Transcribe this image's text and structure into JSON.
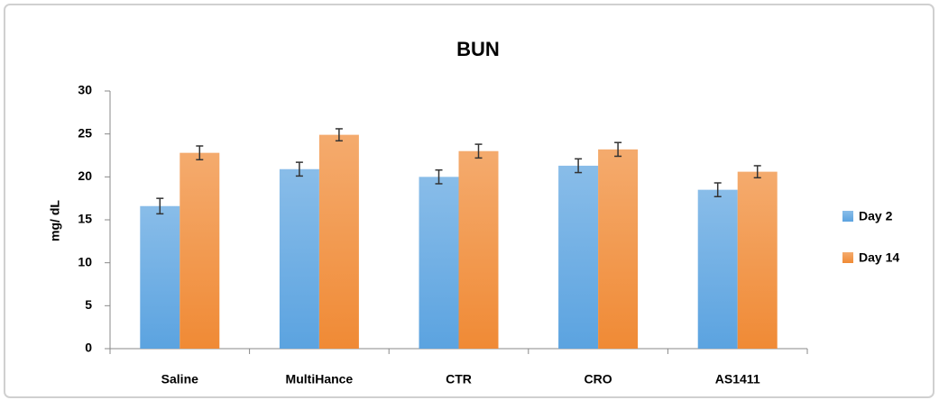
{
  "chart_data": {
    "type": "bar",
    "title": "BUN",
    "y_label": "mg/ dL",
    "categories": [
      "Saline",
      "MultiHance",
      "CTR",
      "CRO",
      "AS1411"
    ],
    "series": [
      {
        "name": "Day 2",
        "color": "#5ba3e0",
        "values": [
          16.6,
          20.9,
          20.0,
          21.3,
          18.5
        ],
        "errors": [
          0.9,
          0.8,
          0.8,
          0.8,
          0.8
        ]
      },
      {
        "name": "Day 14",
        "color": "#f08a35",
        "values": [
          22.8,
          24.9,
          23.0,
          23.2,
          20.6
        ],
        "errors": [
          0.8,
          0.7,
          0.8,
          0.8,
          0.7
        ]
      }
    ],
    "ylim": [
      0,
      30
    ],
    "yticks": [
      0,
      5,
      10,
      15,
      20,
      25,
      30
    ],
    "grid": false,
    "legend": "right"
  }
}
